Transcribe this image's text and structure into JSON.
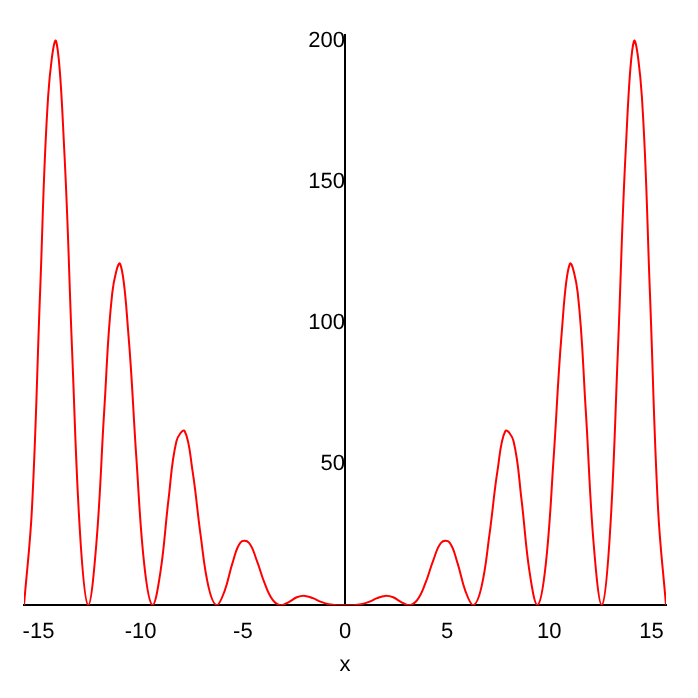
{
  "chart_data": {
    "type": "line",
    "xlabel": "x",
    "x": [
      -15.71,
      -15.32,
      -14.92,
      -14.53,
      -14.14,
      -13.74,
      -13.35,
      -12.96,
      -12.57,
      -12.17,
      -11.78,
      -11.39,
      -11.0,
      -10.6,
      -10.21,
      -9.82,
      -9.42,
      -9.03,
      -8.64,
      -8.25,
      -7.85,
      -7.46,
      -7.07,
      -6.68,
      -6.28,
      -5.89,
      -5.5,
      -5.11,
      -4.71,
      -4.32,
      -3.93,
      -3.53,
      -3.14,
      -2.75,
      -2.36,
      -1.96,
      -1.57,
      -1.18,
      -0.79,
      -0.39,
      0,
      0.39,
      0.79,
      1.18,
      1.57,
      1.96,
      2.36,
      2.75,
      3.14,
      3.53,
      3.93,
      4.32,
      4.71,
      5.11,
      5.5,
      5.89,
      6.28,
      6.68,
      7.07,
      7.46,
      7.85,
      8.25,
      8.64,
      9.03,
      9.42,
      9.82,
      10.21,
      10.6,
      11.0,
      11.39,
      11.78,
      12.17,
      12.57,
      12.96,
      13.35,
      13.74,
      14.14,
      14.53,
      14.92,
      15.32,
      15.71
    ],
    "series": [
      {
        "color": "#ff0000",
        "values": [
          0,
          34.3,
          111.3,
          180.2,
          199.9,
          161.3,
          89.1,
          24.6,
          0,
          21.7,
          69.4,
          110.7,
          120.9,
          96.0,
          52.1,
          14.1,
          0,
          11.9,
          37.3,
          58.1,
          61.7,
          47.5,
          25.0,
          6.5,
          0,
          5.1,
          15.1,
          22.3,
          22.2,
          15.9,
          7.7,
          1.8,
          0,
          1.1,
          2.8,
          3.3,
          2.5,
          1.2,
          0.3,
          0.0,
          null,
          0.0,
          0.3,
          1.2,
          2.5,
          3.3,
          2.8,
          1.1,
          0,
          1.8,
          7.7,
          15.9,
          22.2,
          22.3,
          15.1,
          5.1,
          0,
          6.5,
          25.0,
          47.5,
          61.7,
          58.1,
          37.3,
          11.9,
          0,
          14.1,
          52.1,
          96.0,
          120.9,
          110.7,
          69.4,
          21.7,
          0,
          24.6,
          89.1,
          161.3,
          199.9,
          180.2,
          111.3,
          34.3,
          0
        ]
      }
    ],
    "xlim": [
      -15.71,
      15.71
    ],
    "ylim": [
      0,
      202
    ],
    "xticks": [
      -15,
      -10,
      -5,
      0,
      5,
      10,
      15
    ],
    "yticks": [
      50,
      100,
      150,
      200
    ],
    "grid": false,
    "legend": false,
    "marker": "none",
    "line_style": "solid"
  }
}
